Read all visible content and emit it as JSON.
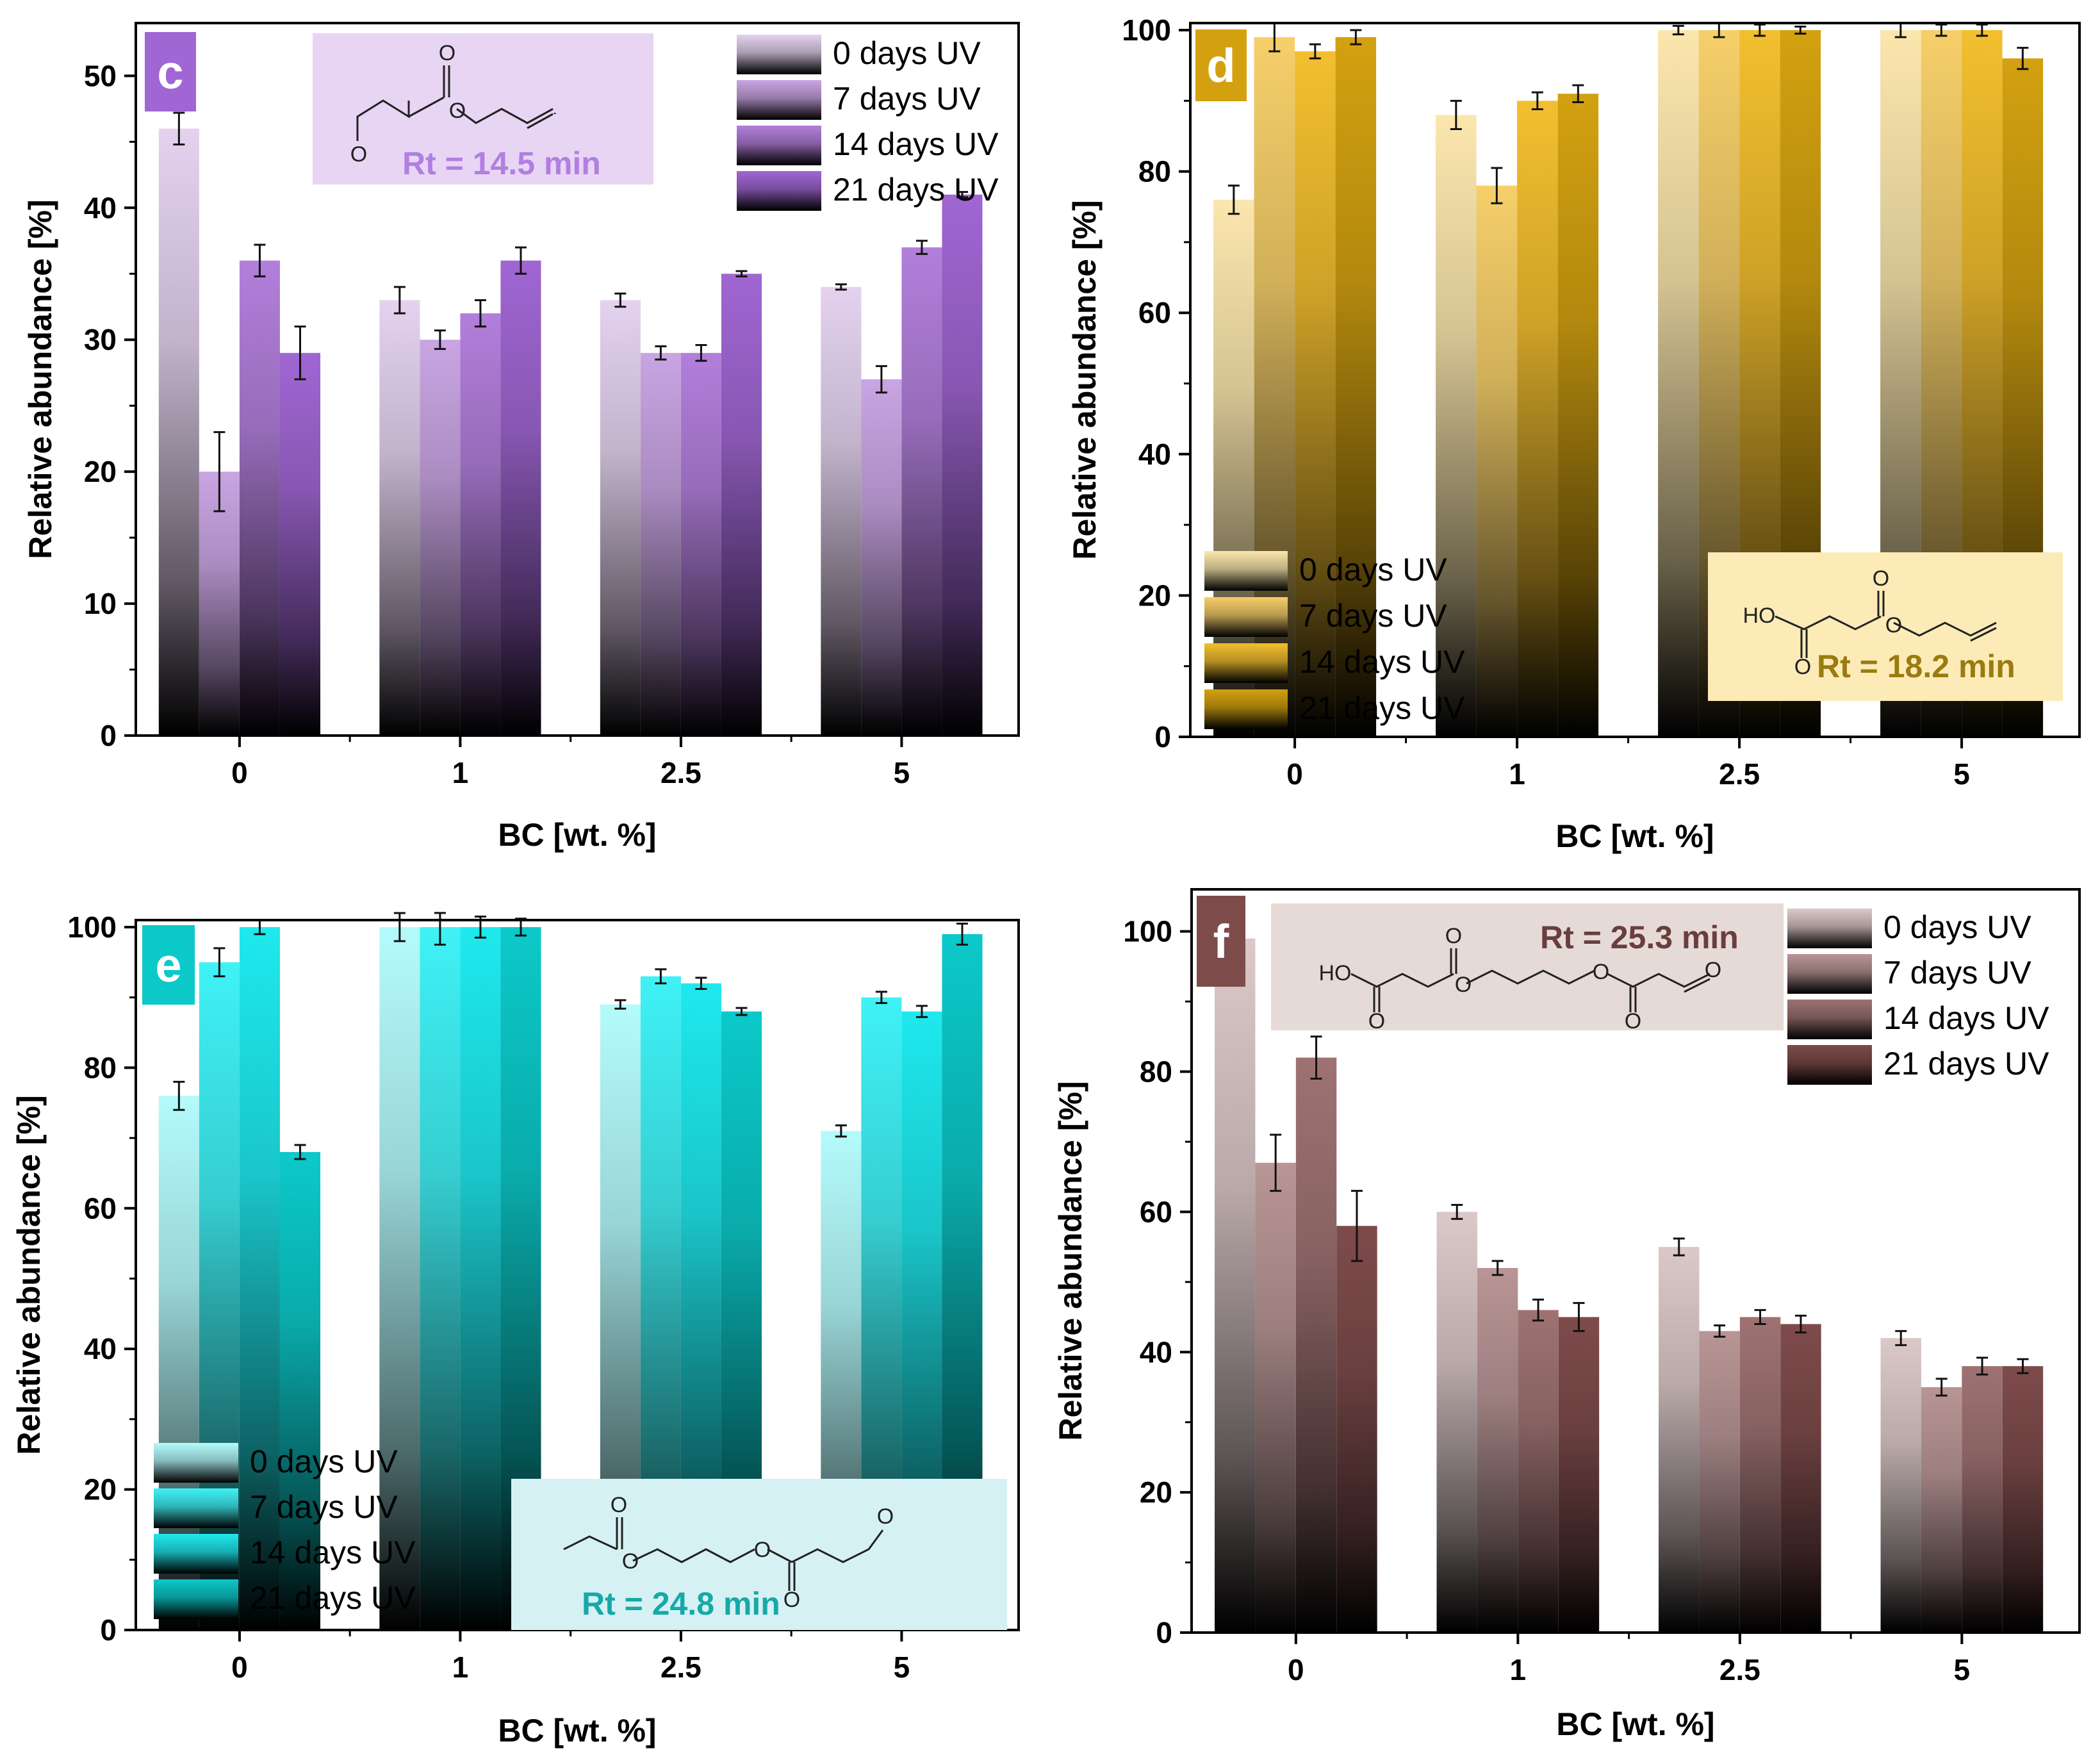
{
  "chart_data": [
    {
      "id": "c",
      "type": "bar",
      "panel_label": "c",
      "title": "",
      "xlabel": "BC [wt. %]",
      "ylabel": "Relative abundance [%]",
      "ylim": [
        0,
        54
      ],
      "yticks": [
        0,
        10,
        20,
        30,
        40,
        50
      ],
      "categories": [
        "0",
        "1",
        "2.5",
        "5"
      ],
      "series": [
        {
          "name": "0 days UV",
          "values": [
            46,
            33,
            33,
            34
          ],
          "errors": [
            1.2,
            1.0,
            0.5,
            0.2
          ]
        },
        {
          "name": "7 days UV",
          "values": [
            20,
            30,
            29,
            27
          ],
          "errors": [
            3.0,
            0.7,
            0.5,
            1.0
          ]
        },
        {
          "name": "14 days UV",
          "values": [
            36,
            32,
            29,
            37
          ],
          "errors": [
            1.2,
            1.0,
            0.6,
            0.5
          ]
        },
        {
          "name": "21 days UV",
          "values": [
            29,
            36,
            35,
            41
          ],
          "errors": [
            2.0,
            1.0,
            0.2,
            0.2
          ]
        }
      ],
      "colors": [
        "#e4d2ef",
        "#c9a5e3",
        "#b27fdb",
        "#a066d3"
      ],
      "legend_position": "top-right",
      "annotation": {
        "text": "Rt = 14.5 min",
        "color": "#b07fe0",
        "bg": "#e8d5f4",
        "molecule_labels": [
          "O",
          "O",
          "O"
        ]
      }
    },
    {
      "id": "d",
      "type": "bar",
      "panel_label": "d",
      "title": "",
      "xlabel": "BC [wt. %]",
      "ylabel": "Relative abundance [%]",
      "ylim": [
        0,
        101
      ],
      "yticks": [
        0,
        20,
        40,
        60,
        80,
        100
      ],
      "categories": [
        "0",
        "1",
        "2.5",
        "5"
      ],
      "series": [
        {
          "name": "0 days UV",
          "values": [
            76,
            88,
            100,
            100
          ],
          "errors": [
            2.0,
            2.0,
            0.6,
            1.0
          ]
        },
        {
          "name": "7 days UV",
          "values": [
            99,
            78,
            100,
            100
          ],
          "errors": [
            2.0,
            2.5,
            1.0,
            0.8
          ]
        },
        {
          "name": "14 days UV",
          "values": [
            97,
            90,
            100,
            100
          ],
          "errors": [
            1.0,
            1.2,
            0.8,
            0.8
          ]
        },
        {
          "name": "21 days UV",
          "values": [
            99,
            91,
            100,
            96
          ],
          "errors": [
            1.0,
            1.2,
            0.5,
            1.5
          ]
        }
      ],
      "colors": [
        "#fbe6ad",
        "#f6cf6a",
        "#f2bf2f",
        "#d3a110"
      ],
      "legend_position": "bottom-left",
      "annotation": {
        "text": "Rt = 18.2 min",
        "color": "#9a7b10",
        "bg": "#fcebb6",
        "molecule_labels": [
          "HO",
          "O",
          "O",
          "O"
        ]
      }
    },
    {
      "id": "e",
      "type": "bar",
      "panel_label": "e",
      "title": "",
      "xlabel": "BC [wt. %]",
      "ylabel": "Relative abundance [%]",
      "ylim": [
        0,
        101
      ],
      "yticks": [
        0,
        20,
        40,
        60,
        80,
        100
      ],
      "categories": [
        "0",
        "1",
        "2.5",
        "5"
      ],
      "series": [
        {
          "name": "0 days UV",
          "values": [
            76,
            100,
            89,
            71
          ],
          "errors": [
            2.0,
            2.0,
            0.6,
            0.8
          ]
        },
        {
          "name": "7 days UV",
          "values": [
            95,
            100,
            93,
            90
          ],
          "errors": [
            2.0,
            2.5,
            1.0,
            0.8
          ]
        },
        {
          "name": "14 days UV",
          "values": [
            100,
            100,
            92,
            88
          ],
          "errors": [
            1.0,
            1.5,
            0.8,
            0.8
          ]
        },
        {
          "name": "21 days UV",
          "values": [
            68,
            100,
            88,
            99
          ],
          "errors": [
            1.0,
            1.2,
            0.5,
            1.5
          ]
        }
      ],
      "colors": [
        "#b4fbfc",
        "#3ff2f6",
        "#1ee9ee",
        "#0cc9c9"
      ],
      "legend_position": "bottom-left",
      "annotation": {
        "text": "Rt = 24.8 min",
        "color": "#16a9a9",
        "bg": "#d6f1f3",
        "molecule_labels": [
          "O",
          "O",
          "O",
          "O",
          "O"
        ]
      }
    },
    {
      "id": "f",
      "type": "bar",
      "panel_label": "f",
      "title": "",
      "xlabel": "BC [wt. %]",
      "ylabel": "Relative abundance [%]",
      "ylim": [
        0,
        106
      ],
      "yticks": [
        0,
        20,
        40,
        60,
        80,
        100
      ],
      "categories": [
        "0",
        "1",
        "2.5",
        "5"
      ],
      "series": [
        {
          "name": "0 days UV",
          "values": [
            99,
            60,
            55,
            42
          ],
          "errors": [
            3.0,
            1.0,
            1.2,
            1.0
          ]
        },
        {
          "name": "7 days UV",
          "values": [
            67,
            52,
            43,
            35
          ],
          "errors": [
            4.0,
            1.0,
            0.8,
            1.2
          ]
        },
        {
          "name": "14 days UV",
          "values": [
            82,
            46,
            45,
            38
          ],
          "errors": [
            3.0,
            1.5,
            1.0,
            1.2
          ]
        },
        {
          "name": "21 days UV",
          "values": [
            58,
            45,
            44,
            38
          ],
          "errors": [
            5.0,
            2.0,
            1.2,
            1.0
          ]
        }
      ],
      "colors": [
        "#dcc8c8",
        "#b99595",
        "#9f7272",
        "#7e4b4b"
      ],
      "legend_position": "top-right",
      "annotation": {
        "text": "Rt = 25.3 min",
        "color": "#6a3e3e",
        "bg": "#e6dad6",
        "molecule_labels": [
          "HO",
          "O",
          "O",
          "O",
          "O",
          "O",
          "O"
        ]
      }
    }
  ]
}
